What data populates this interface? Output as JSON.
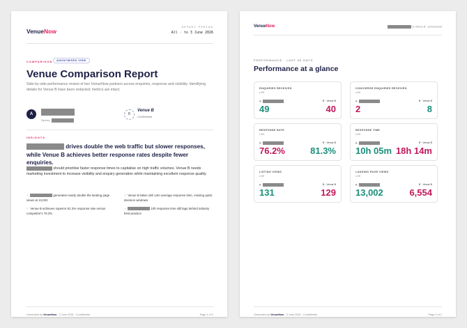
{
  "brand": {
    "name_a": "Venue",
    "name_b": "Now"
  },
  "page1": {
    "report_period_label": "REPORT PERIOD",
    "report_period_value": "All · to 3 June 2026",
    "comparison_label": "COMPARISON",
    "anon_badge": "ANONYMISED VIEW",
    "title": "Venue Comparison Report",
    "description": "Side-by-side performance review of two VenueNow partners across enquiries, response and visibility. Identifying details for Venue B have been redacted; metrics are intact.",
    "venue_a": {
      "initial": "A",
      "sub": "Sydney ·"
    },
    "venue_b": {
      "initial": "B",
      "name": "Venue B",
      "sub": "Confidential",
      "dash": "-"
    },
    "insights_label": "INSIGHTS",
    "headline_suffix": " drives double the web traffic but slower responses, while Venue B achieves better response rates despite fewer enquiries.",
    "para_suffix": " should prioritise faster response times to capitalise on high traffic volumes. Venue B needs marketing investment to increase visibility and enquiry generation while maintaining excellent response quality.",
    "bullets": [
      {
        "arrow": "↑",
        "text_after": " generates nearly double the landing page views at 13,002"
      },
      {
        "arrow": "↓",
        "text": "Venue B takes 18h 14m average response time, missing quick decision windows"
      },
      {
        "arrow": "↑",
        "text": "Venue B achieves superior 81.3% response rate versus competitor's 76.2%"
      },
      {
        "arrow": "↓",
        "text_after": " 10h response time still lags behind industry best practice"
      }
    ],
    "footer_prefix": "Generated by ",
    "footer_suffix": " · 3 June 2026 · Confidential",
    "page_num": "Page 1 of 2"
  },
  "page2": {
    "header_right_suffix": " vs Venue B · anonymised",
    "section_label": "PERFORMANCE · LAST 90 DAYS",
    "title": "Performance at a glance",
    "metrics": [
      {
        "title": "ENQUIRIES RECEIVED",
        "unit": "LIVE",
        "label_a": "A ·",
        "label_b": "B · Venue B",
        "value_a": "49",
        "value_b": "40",
        "color_a": "#1a8f7a",
        "color_b": "#c2185b"
      },
      {
        "title": "CONCIERGE ENQUIRIES RECEIVED",
        "unit": "LIVE",
        "label_a": "A ·",
        "label_b": "B · Venue B",
        "value_a": "2",
        "value_b": "8",
        "color_a": "#c2185b",
        "color_b": "#1a8f7a"
      },
      {
        "title": "RESPONSE RATE",
        "unit": "LIVE",
        "label_a": "A ·",
        "label_b": "B · Venue B",
        "value_a": "76.2%",
        "value_b": "81.3%",
        "color_a": "#c2185b",
        "color_b": "#1a8f7a"
      },
      {
        "title": "RESPONSE TIME",
        "unit": "LIVE",
        "label_a": "A ·",
        "label_b": "B · Venue B",
        "value_a": "10h 05m",
        "value_b": "18h 14m",
        "color_a": "#1a8f7a",
        "color_b": "#c2185b"
      },
      {
        "title": "LISTING VIEWS",
        "unit": "LIVE",
        "label_a": "A ·",
        "label_b": "B · Venue B",
        "value_a": "131",
        "value_b": "129",
        "color_a": "#1a8f7a",
        "color_b": "#c2185b"
      },
      {
        "title": "LANDING PAGE VIEWS",
        "unit": "LIVE",
        "label_a": "A ·",
        "label_b": "B · Venue B",
        "value_a": "13,002",
        "value_b": "6,554",
        "color_a": "#1a8f7a",
        "color_b": "#c2185b"
      }
    ],
    "footer_prefix": "Generated by ",
    "footer_suffix": " · 3 June 2026 · Confidential",
    "page_num": "Page 2 of 2"
  }
}
